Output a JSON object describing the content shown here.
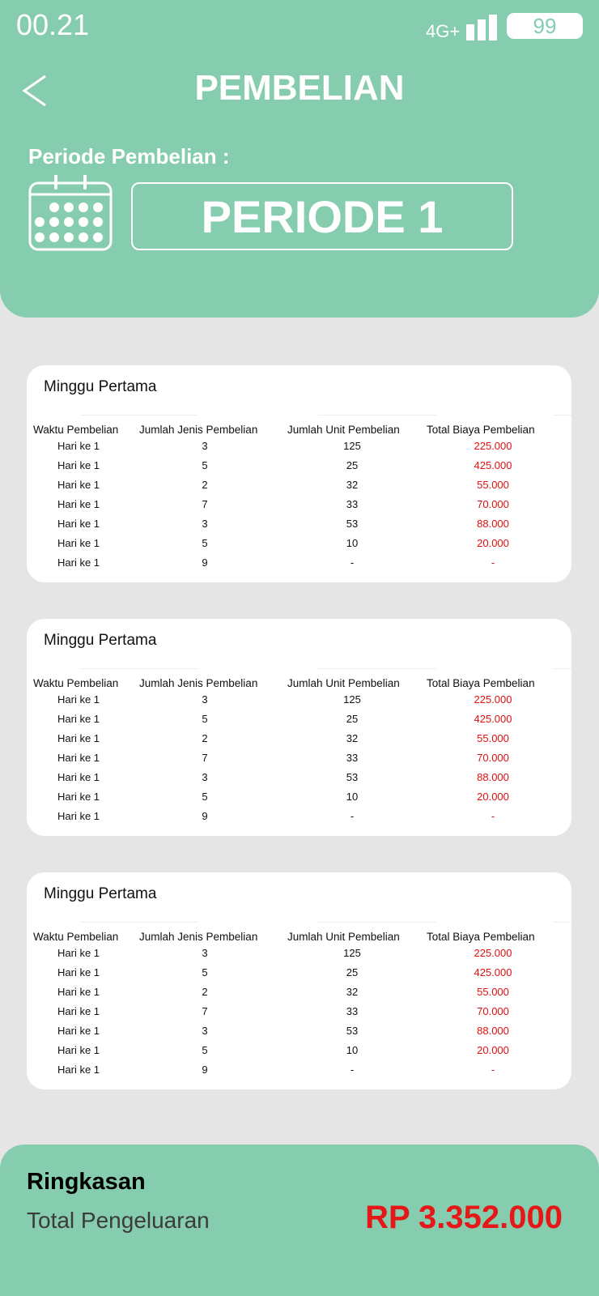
{
  "status_bar": {
    "time": "00.21",
    "network": "4G+",
    "battery": "99"
  },
  "header": {
    "title": "PEMBELIAN",
    "period_label": "Periode Pembelian :",
    "period_value": "PERIODE 1"
  },
  "table_headers": [
    "Waktu Pembelian",
    "Jumlah Jenis Pembelian",
    "Jumlah Unit Pembelian",
    "Total Biaya Pembelian"
  ],
  "weeks": [
    {
      "title": "Minggu Pertama",
      "rows": [
        [
          "Hari ke 1",
          "3",
          "125",
          "225.000"
        ],
        [
          "Hari ke 1",
          "5",
          "25",
          "425.000"
        ],
        [
          "Hari ke 1",
          "2",
          "32",
          "55.000"
        ],
        [
          "Hari ke 1",
          "7",
          "33",
          "70.000"
        ],
        [
          "Hari ke 1",
          "3",
          "53",
          "88.000"
        ],
        [
          "Hari ke 1",
          "5",
          "10",
          "20.000"
        ],
        [
          "Hari ke 1",
          "9",
          "-",
          "-"
        ]
      ]
    },
    {
      "title": "Minggu Pertama",
      "rows": [
        [
          "Hari ke 1",
          "3",
          "125",
          "225.000"
        ],
        [
          "Hari ke 1",
          "5",
          "25",
          "425.000"
        ],
        [
          "Hari ke 1",
          "2",
          "32",
          "55.000"
        ],
        [
          "Hari ke 1",
          "7",
          "33",
          "70.000"
        ],
        [
          "Hari ke 1",
          "3",
          "53",
          "88.000"
        ],
        [
          "Hari ke 1",
          "5",
          "10",
          "20.000"
        ],
        [
          "Hari ke 1",
          "9",
          "-",
          "-"
        ]
      ]
    },
    {
      "title": "Minggu Pertama",
      "rows": [
        [
          "Hari ke 1",
          "3",
          "125",
          "225.000"
        ],
        [
          "Hari ke 1",
          "5",
          "25",
          "425.000"
        ],
        [
          "Hari ke 1",
          "2",
          "32",
          "55.000"
        ],
        [
          "Hari ke 1",
          "7",
          "33",
          "70.000"
        ],
        [
          "Hari ke 1",
          "3",
          "53",
          "88.000"
        ],
        [
          "Hari ke 1",
          "5",
          "10",
          "20.000"
        ],
        [
          "Hari ke 1",
          "9",
          "-",
          "-"
        ]
      ]
    }
  ],
  "summary": {
    "title": "Ringkasan",
    "label": "Total Pengeluaran",
    "value": "RP 3.352.000"
  },
  "colors": {
    "accent": "#86ccaf",
    "background": "#e5e5e5",
    "cost": "#e01010",
    "total": "#e61717"
  },
  "icons": {
    "back": "chevron-left-icon",
    "calendar": "calendar-icon",
    "signal": "signal-icon",
    "battery": "battery-icon"
  }
}
